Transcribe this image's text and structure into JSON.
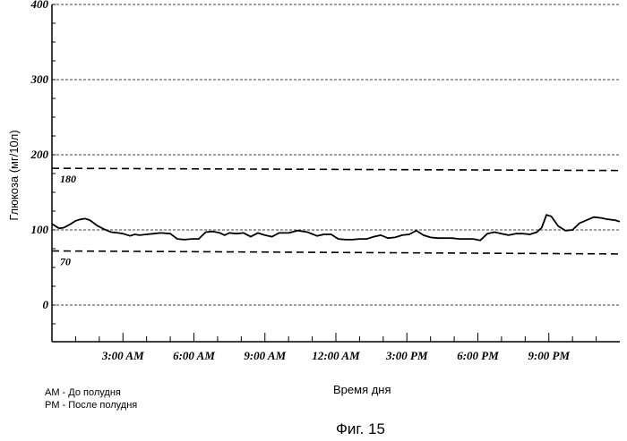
{
  "chart_data": {
    "type": "line",
    "ylabel": "Глюкоза (мг/10л)",
    "xlabel": "Время дня",
    "caption": "Фиг. 15",
    "y_ticks": [
      "0",
      "100",
      "200",
      "300",
      "400"
    ],
    "x_ticks": [
      "3:00 AM",
      "6:00 AM",
      "9:00 AM",
      "12:00 AM",
      "3:00 PM",
      "6:00 PM",
      "9:00 PM"
    ],
    "ref_lines": [
      {
        "label": "180",
        "y_left": 182,
        "y_right": 179
      },
      {
        "label": "70",
        "y_left": 72,
        "y_right": 68
      }
    ],
    "legend": [
      "AM - До полудня",
      "PM - После полудня"
    ],
    "xlim": [
      0,
      24
    ],
    "ylim": [
      -50,
      400
    ],
    "grid": true,
    "series": [
      {
        "x": [
          0,
          0.3,
          0.5,
          0.8,
          1.0,
          1.2,
          1.4,
          1.6,
          1.9,
          2.2,
          2.5,
          2.8,
          3.0,
          3.3,
          3.5,
          3.7,
          4.0,
          4.3,
          4.6,
          5.0,
          5.3,
          5.6,
          5.9,
          6.2,
          6.5,
          6.8,
          7.1,
          7.3,
          7.5,
          7.8,
          8.1,
          8.4,
          8.7,
          9.0,
          9.3,
          9.6,
          10.0,
          10.4,
          10.8,
          11.2,
          11.5,
          11.8,
          12.1,
          12.4,
          12.7,
          13.0,
          13.3,
          13.6,
          13.9,
          14.2,
          14.5,
          14.8,
          15.1,
          15.4,
          15.7,
          16.0,
          16.3,
          16.6,
          16.9,
          17.2,
          17.5,
          17.8,
          18.1,
          18.4,
          18.7,
          19.0,
          19.3,
          19.6,
          19.9,
          20.2,
          20.5,
          20.7,
          20.9,
          21.1,
          21.4,
          21.7,
          22.0,
          22.3,
          22.6,
          22.9,
          23.2,
          23.5,
          23.8,
          24.0
        ],
        "y": [
          108,
          102,
          103,
          108,
          112,
          114,
          115,
          113,
          106,
          101,
          97,
          96,
          95,
          92,
          94,
          93,
          94,
          95,
          96,
          95,
          88,
          87,
          88,
          88,
          97,
          98,
          96,
          93,
          96,
          95,
          96,
          91,
          96,
          93,
          91,
          96,
          96,
          99,
          97,
          92,
          94,
          94,
          88,
          87,
          87,
          88,
          88,
          91,
          93,
          89,
          90,
          93,
          94,
          99,
          93,
          90,
          89,
          89,
          89,
          88,
          88,
          88,
          86,
          95,
          97,
          95,
          93,
          95,
          95,
          94,
          97,
          103,
          120,
          118,
          105,
          99,
          100,
          109,
          113,
          117,
          116,
          114,
          113,
          111
        ]
      }
    ]
  }
}
